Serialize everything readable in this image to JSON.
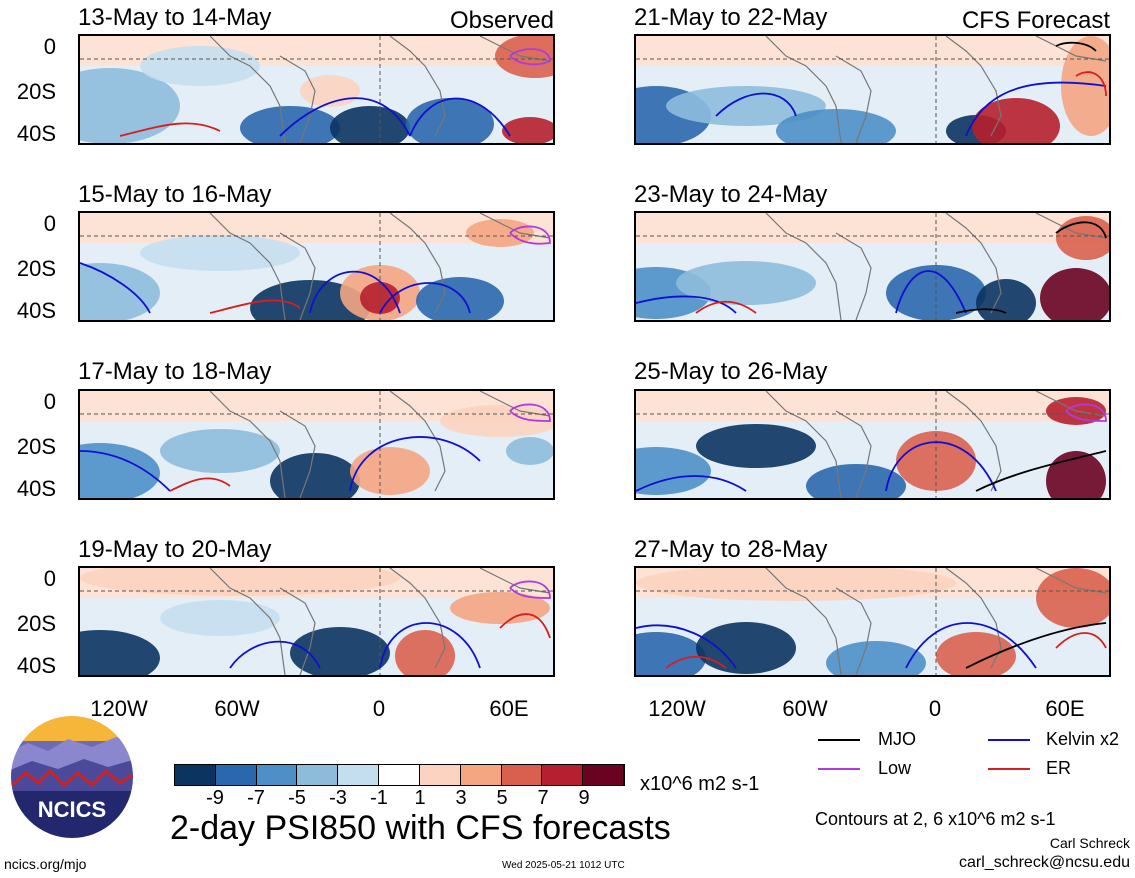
{
  "panels": [
    {
      "title": "13-May to 14-May",
      "tag": "Observed",
      "col": 0,
      "row": 0
    },
    {
      "title": "15-May to 16-May",
      "tag": "",
      "col": 0,
      "row": 1
    },
    {
      "title": "17-May to 18-May",
      "tag": "",
      "col": 0,
      "row": 2
    },
    {
      "title": "19-May to 20-May",
      "tag": "",
      "col": 0,
      "row": 3
    },
    {
      "title": "21-May to 22-May",
      "tag": "CFS Forecast",
      "col": 1,
      "row": 0
    },
    {
      "title": "23-May to 24-May",
      "tag": "",
      "col": 1,
      "row": 1
    },
    {
      "title": "25-May to 26-May",
      "tag": "",
      "col": 1,
      "row": 2
    },
    {
      "title": "27-May to 28-May",
      "tag": "",
      "col": 1,
      "row": 3
    }
  ],
  "y_axis_labels": [
    "0",
    "20S",
    "40S"
  ],
  "x_axis_labels": [
    "120W",
    "60W",
    "0",
    "60E"
  ],
  "colorbar": {
    "colors": [
      "#0b3461",
      "#2a67ad",
      "#4d8fc6",
      "#8dbcdb",
      "#c5deef",
      "#ffffff",
      "#fbd3c0",
      "#f4a582",
      "#d9604f",
      "#b61f2e",
      "#6a0221"
    ],
    "labels": [
      "-9",
      "-7",
      "-5",
      "-3",
      "-1",
      "1",
      "3",
      "5",
      "7",
      "9"
    ],
    "units": "x10^6 m2 s-1"
  },
  "legend": [
    {
      "label": "MJO",
      "color": "#000000"
    },
    {
      "label": "Kelvin x2",
      "color": "#1010d0"
    },
    {
      "label": "Low",
      "color": "#b03ae0"
    },
    {
      "label": "ER",
      "color": "#d81e1e"
    }
  ],
  "title": "2-day PSI850 with CFS forecasts",
  "contours_note": "Contours at 2, 6 x10^6 m2 s-1",
  "author": "Carl Schreck",
  "email": "carl_schreck@ncsu.edu",
  "site": "ncics.org/mjo",
  "timestamp": "Wed 2025-05-21 1012 UTC",
  "logo_text": "NCICS"
}
